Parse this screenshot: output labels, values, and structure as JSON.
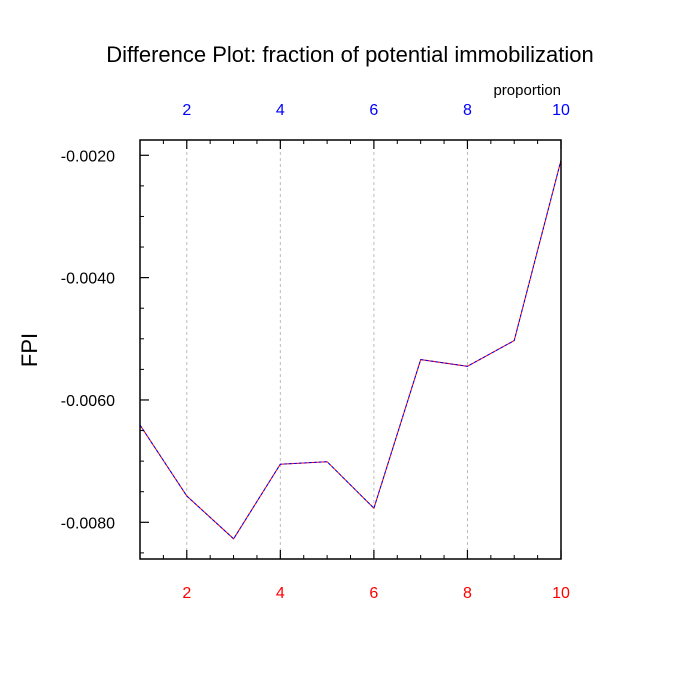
{
  "chart_data": {
    "type": "line",
    "title": "Difference Plot: fraction of potential immobilization",
    "ylabel": "FPI",
    "top_axis_label": "proportion",
    "x": [
      1,
      2,
      3,
      4,
      5,
      6,
      7,
      8,
      9,
      10
    ],
    "series": [
      {
        "values": [
          -0.00641,
          -0.00757,
          -0.00827,
          -0.00705,
          -0.00701,
          -0.00777,
          -0.00534,
          -0.00545,
          -0.00503,
          -0.00208
        ]
      }
    ],
    "xlim": [
      1,
      10
    ],
    "ylim": [
      -0.0086,
      -0.00175
    ],
    "x_ticks": [
      2,
      4,
      6,
      8,
      10
    ],
    "y_ticks": [
      -0.008,
      -0.006,
      -0.004,
      -0.002
    ],
    "y_tick_labels": [
      "-0.0080",
      "-0.0060",
      "-0.0040",
      "-0.0020"
    ],
    "grid": "vertical dashed gray at major x ticks",
    "colors": {
      "bottom_tick_labels": "#ff0000",
      "top_tick_labels": "#0000ff",
      "line_primary": "#ff0000",
      "line_overlay": "#0000ff",
      "grid": "#bbbbbb"
    }
  }
}
